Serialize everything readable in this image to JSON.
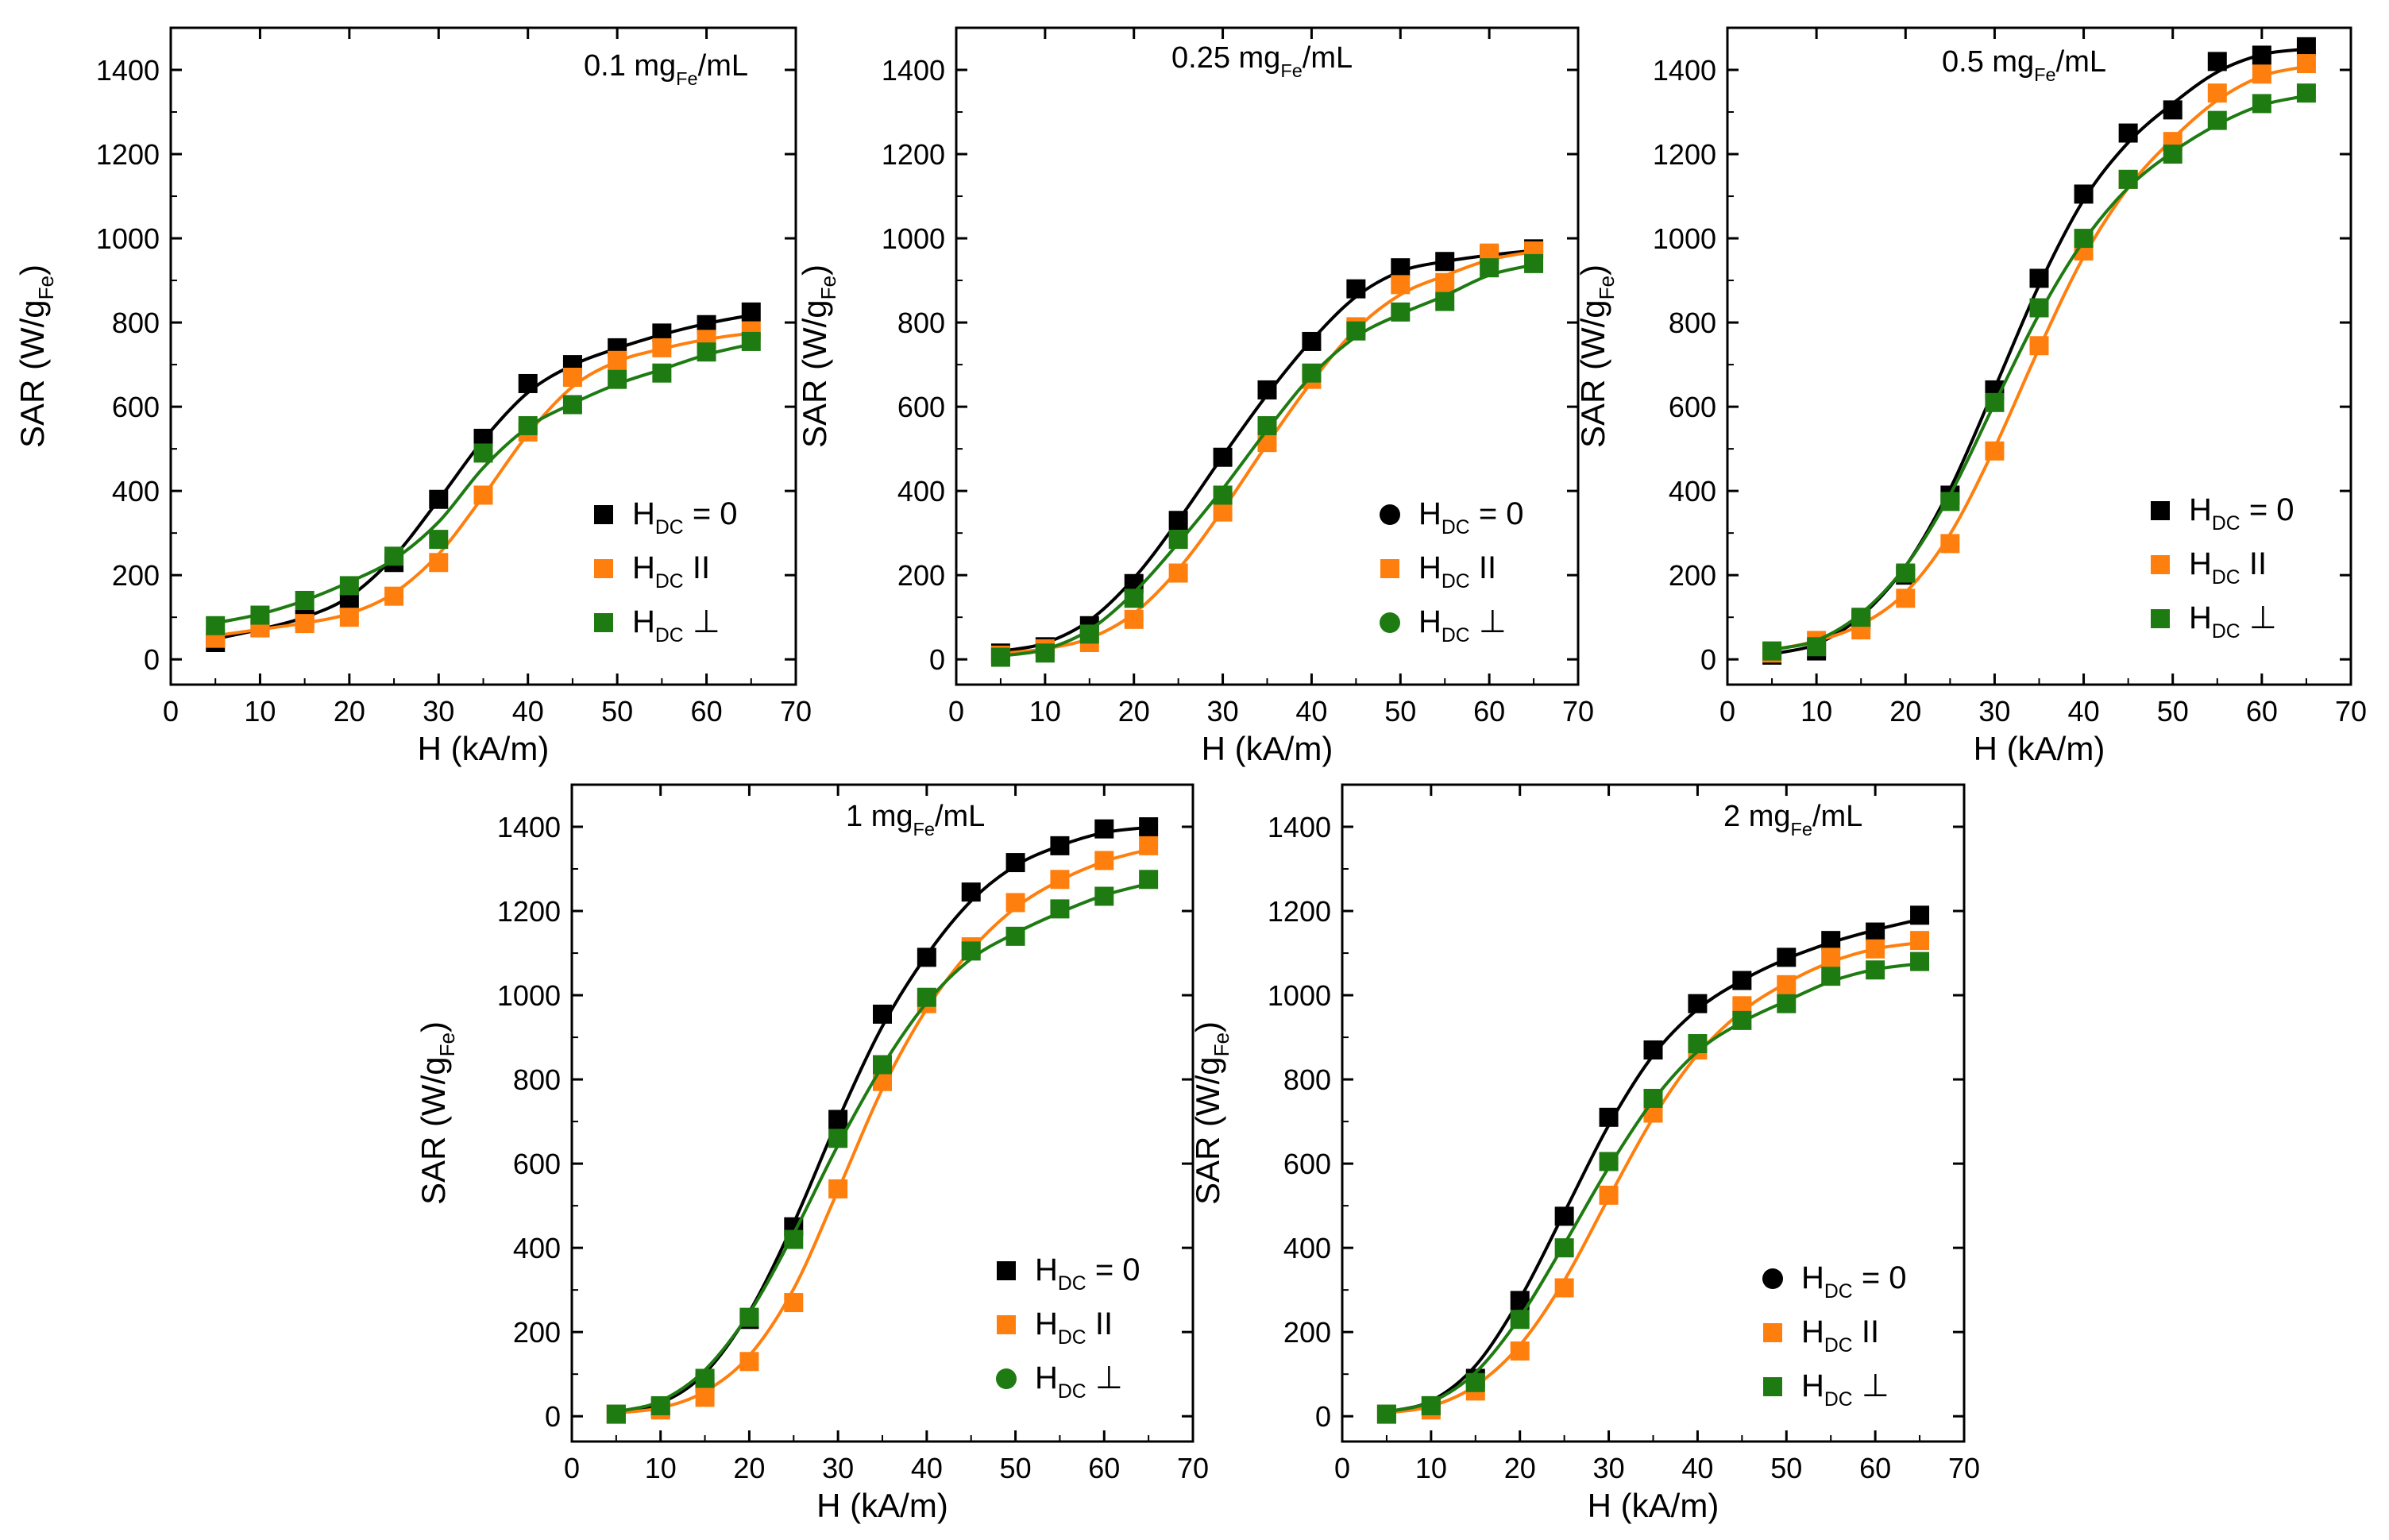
{
  "figure": {
    "shared_ylabel": "SAR (W/g",
    "ylabel_sub": "Fe",
    "ylabel_close": ")"
  },
  "colors": {
    "HDC = 0": "#000000",
    "HDC II": "#FF7F0E",
    "HDC ⊥": "#1E7B12"
  },
  "chart_data": [
    {
      "type": "scatter",
      "title": "0.1 mg",
      "title_sub": "Fe",
      "title_suffix": "/mL",
      "xlabel": "H (kA/m)",
      "ylabel": "SAR (W/gFe)",
      "xlim": [
        0,
        70
      ],
      "ylim": [
        -60,
        1500
      ],
      "xticks": [
        0,
        10,
        20,
        30,
        40,
        50,
        60,
        70
      ],
      "yticks": [
        0,
        200,
        400,
        600,
        800,
        1000,
        1200,
        1400
      ],
      "legend": {
        "placement": "bottom-right"
      },
      "x": [
        5,
        10,
        15,
        20,
        25,
        30,
        35,
        40,
        45,
        50,
        55,
        60,
        65
      ],
      "series": [
        {
          "name": "HDC = 0",
          "label_main": "H",
          "label_sub": "DC",
          "label_suffix": " = 0",
          "marker": "square",
          "values": [
            40,
            75,
            95,
            135,
            230,
            380,
            525,
            655,
            700,
            740,
            775,
            795,
            825
          ]
        },
        {
          "name": "HDC II",
          "label_main": "H",
          "label_sub": "DC",
          "label_suffix": "  II",
          "marker": "square",
          "values": [
            50,
            75,
            85,
            100,
            150,
            230,
            390,
            540,
            670,
            710,
            740,
            760,
            780
          ]
        },
        {
          "name": "HDC ⊥",
          "label_main": "H",
          "label_sub": "DC",
          "label_suffix": "  ⊥",
          "marker": "square",
          "values": [
            80,
            105,
            140,
            175,
            245,
            285,
            490,
            555,
            605,
            665,
            680,
            730,
            755
          ]
        }
      ]
    },
    {
      "type": "scatter",
      "title": "0.25 mg",
      "title_sub": "Fe",
      "title_suffix": "/mL",
      "xlabel": "H (kA/m)",
      "ylabel": "SAR (W/gFe)",
      "xlim": [
        0,
        70
      ],
      "ylim": [
        -60,
        1500
      ],
      "xticks": [
        0,
        10,
        20,
        30,
        40,
        50,
        60,
        70
      ],
      "yticks": [
        0,
        200,
        400,
        600,
        800,
        1000,
        1200,
        1400
      ],
      "legend": {
        "placement": "bottom-right"
      },
      "x": [
        5,
        10,
        15,
        20,
        25,
        30,
        35,
        40,
        45,
        50,
        55,
        60,
        65
      ],
      "series": [
        {
          "name": "HDC = 0",
          "label_main": "H",
          "label_sub": "DC",
          "label_suffix": " = 0",
          "marker": "circle",
          "values": [
            15,
            30,
            80,
            180,
            330,
            480,
            640,
            755,
            880,
            930,
            945,
            960,
            975
          ]
        },
        {
          "name": "HDC II",
          "label_main": "H",
          "label_sub": "DC",
          "label_suffix": "  II",
          "marker": "square",
          "values": [
            10,
            25,
            40,
            95,
            205,
            350,
            515,
            665,
            790,
            890,
            895,
            965,
            970
          ]
        },
        {
          "name": "HDC ⊥",
          "label_main": "H",
          "label_sub": "DC",
          "label_suffix": "  ⊥",
          "marker": "circle",
          "values": [
            5,
            15,
            60,
            145,
            285,
            390,
            555,
            680,
            780,
            825,
            850,
            930,
            940
          ]
        }
      ]
    },
    {
      "type": "scatter",
      "title": "0.5 mg",
      "title_sub": "Fe",
      "title_suffix": "/mL",
      "xlabel": "H (kA/m)",
      "ylabel": "SAR (W/gFe)",
      "xlim": [
        0,
        70
      ],
      "ylim": [
        -60,
        1500
      ],
      "xticks": [
        0,
        10,
        20,
        30,
        40,
        50,
        60,
        70
      ],
      "yticks": [
        0,
        200,
        400,
        600,
        800,
        1000,
        1200,
        1400
      ],
      "legend": {
        "placement": "bottom-right"
      },
      "x": [
        5,
        10,
        15,
        20,
        25,
        30,
        35,
        40,
        45,
        50,
        55,
        60,
        65
      ],
      "series": [
        {
          "name": "HDC = 0",
          "label_main": "H",
          "label_sub": "DC",
          "label_suffix": " = 0",
          "marker": "square",
          "values": [
            10,
            20,
            95,
            200,
            390,
            640,
            905,
            1105,
            1250,
            1305,
            1420,
            1435,
            1455
          ]
        },
        {
          "name": "HDC II",
          "label_main": "H",
          "label_sub": "DC",
          "label_suffix": "  II",
          "marker": "square",
          "values": [
            15,
            45,
            70,
            145,
            275,
            495,
            745,
            970,
            1140,
            1230,
            1345,
            1390,
            1415
          ]
        },
        {
          "name": "HDC ⊥",
          "label_main": "H",
          "label_sub": "DC",
          "label_suffix": "  ⊥",
          "marker": "square",
          "values": [
            20,
            30,
            100,
            205,
            375,
            610,
            835,
            1000,
            1140,
            1200,
            1280,
            1320,
            1345
          ]
        }
      ]
    },
    {
      "type": "scatter",
      "title": "1 mg",
      "title_sub": "Fe",
      "title_suffix": "/mL",
      "xlabel": "H (kA/m)",
      "ylabel": "SAR (W/gFe)",
      "xlim": [
        0,
        70
      ],
      "ylim": [
        -60,
        1500
      ],
      "xticks": [
        0,
        10,
        20,
        30,
        40,
        50,
        60,
        70
      ],
      "yticks": [
        0,
        200,
        400,
        600,
        800,
        1000,
        1200,
        1400
      ],
      "legend": {
        "placement": "bottom-right"
      },
      "x": [
        5,
        10,
        15,
        20,
        25,
        30,
        35,
        40,
        45,
        50,
        55,
        60,
        65
      ],
      "series": [
        {
          "name": "HDC = 0",
          "label_main": "H",
          "label_sub": "DC",
          "label_suffix": " = 0",
          "marker": "square",
          "values": [
            5,
            20,
            80,
            230,
            450,
            705,
            955,
            1090,
            1245,
            1315,
            1355,
            1395,
            1400
          ]
        },
        {
          "name": "HDC II",
          "label_main": "H",
          "label_sub": "DC",
          "label_suffix": "  II",
          "marker": "square",
          "values": [
            5,
            15,
            45,
            130,
            270,
            540,
            795,
            980,
            1115,
            1220,
            1275,
            1320,
            1355
          ]
        },
        {
          "name": "HDC ⊥",
          "label_main": "H",
          "label_sub": "DC",
          "label_suffix": "  ⊥",
          "marker": "circle",
          "values": [
            5,
            25,
            90,
            235,
            420,
            660,
            835,
            995,
            1105,
            1140,
            1205,
            1235,
            1275
          ]
        }
      ]
    },
    {
      "type": "scatter",
      "title": "2 mg",
      "title_sub": "Fe",
      "title_suffix": "/mL",
      "xlabel": "H (kA/m)",
      "ylabel": "SAR (W/gFe)",
      "xlim": [
        0,
        70
      ],
      "ylim": [
        -60,
        1500
      ],
      "xticks": [
        0,
        10,
        20,
        30,
        40,
        50,
        60,
        70
      ],
      "yticks": [
        0,
        200,
        400,
        600,
        800,
        1000,
        1200,
        1400
      ],
      "legend": {
        "placement": "bottom-right"
      },
      "x": [
        5,
        10,
        15,
        20,
        25,
        30,
        35,
        40,
        45,
        50,
        55,
        60,
        65
      ],
      "series": [
        {
          "name": "HDC = 0",
          "label_main": "H",
          "label_sub": "DC",
          "label_suffix": " = 0",
          "marker": "circle",
          "values": [
            5,
            25,
            90,
            275,
            475,
            710,
            870,
            980,
            1035,
            1090,
            1130,
            1150,
            1190
          ]
        },
        {
          "name": "HDC II",
          "label_main": "H",
          "label_sub": "DC",
          "label_suffix": "  II",
          "marker": "square",
          "values": [
            5,
            15,
            60,
            155,
            305,
            525,
            720,
            870,
            975,
            1025,
            1090,
            1110,
            1130
          ]
        },
        {
          "name": "HDC ⊥",
          "label_main": "H",
          "label_sub": "DC",
          "label_suffix": "  ⊥",
          "marker": "square",
          "values": [
            5,
            25,
            80,
            230,
            400,
            605,
            755,
            885,
            940,
            980,
            1045,
            1060,
            1080
          ]
        }
      ]
    }
  ]
}
